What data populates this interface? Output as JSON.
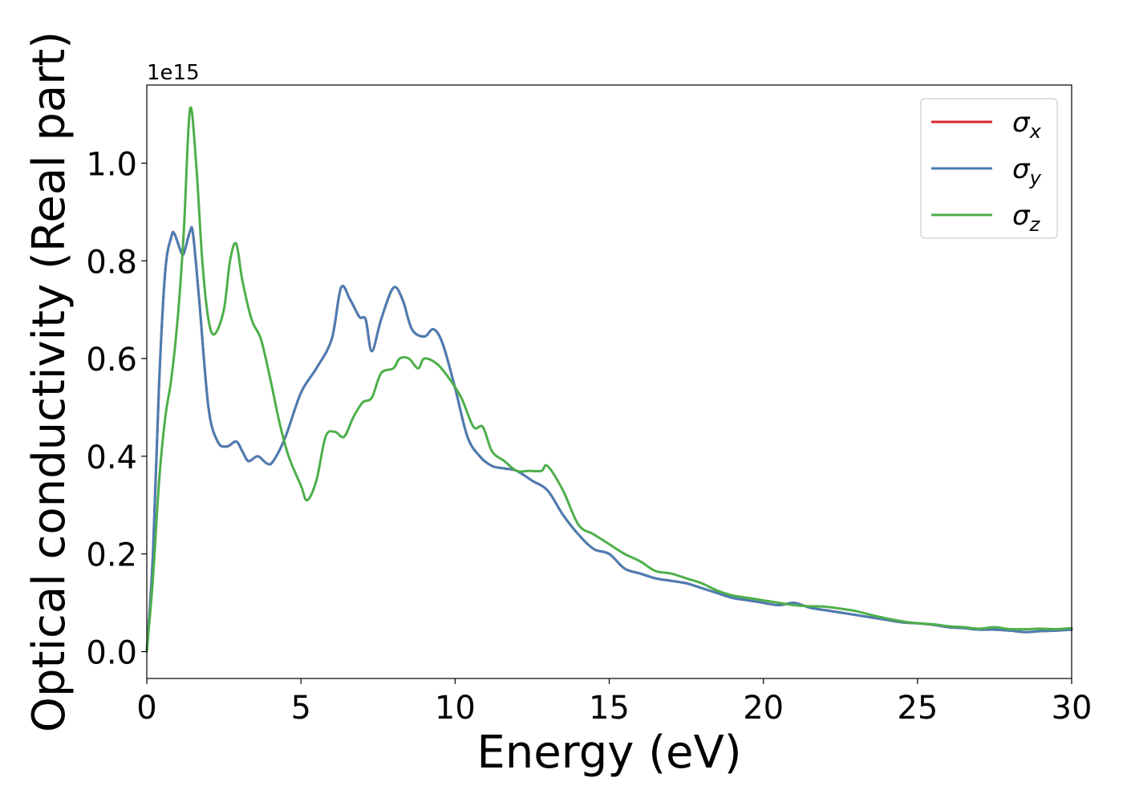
{
  "chart_data": {
    "type": "line",
    "xlabel": "Energy (eV)",
    "ylabel": "Optical conductivity (Real part)",
    "y_offset_label": "1e15",
    "xlim": [
      0,
      30
    ],
    "ylim": [
      -0.055,
      1.16
    ],
    "x_ticks": [
      0,
      5,
      10,
      15,
      20,
      25,
      30
    ],
    "x_tick_labels": [
      "0",
      "5",
      "10",
      "15",
      "20",
      "25",
      "30"
    ],
    "y_ticks": [
      0.0,
      0.2,
      0.4,
      0.6,
      0.8,
      1.0
    ],
    "y_tick_labels": [
      "0.0",
      "0.2",
      "0.4",
      "0.6",
      "0.8",
      "1.0"
    ],
    "grid": false,
    "legend_position": "top-right",
    "series": [
      {
        "name": "σx",
        "legend_base": "σ",
        "legend_sub": "x",
        "color": "#d62728",
        "x": [
          0,
          0.2,
          0.4,
          0.6,
          0.8,
          0.9,
          1.1,
          1.2,
          1.4,
          1.5,
          1.7,
          2.0,
          2.3,
          2.6,
          2.9,
          3.1,
          3.3,
          3.6,
          3.9,
          4.1,
          4.5,
          5.0,
          5.5,
          6.0,
          6.3,
          6.6,
          6.9,
          7.1,
          7.3,
          7.6,
          8.0,
          8.3,
          8.6,
          9.0,
          9.3,
          9.6,
          10.0,
          10.4,
          10.8,
          11.2,
          11.6,
          12.0,
          12.5,
          13.0,
          13.5,
          14.0,
          14.5,
          15.0,
          15.5,
          16.0,
          16.5,
          17.0,
          17.5,
          18.0,
          18.5,
          19.0,
          19.5,
          20.0,
          20.5,
          21.0,
          21.5,
          22.0,
          22.5,
          23.0,
          23.5,
          24.0,
          24.5,
          25.0,
          25.5,
          26.0,
          26.5,
          27.0,
          27.5,
          28.0,
          28.5,
          29.0,
          29.5,
          30.0
        ],
        "y": [
          0.0,
          0.2,
          0.55,
          0.78,
          0.85,
          0.855,
          0.82,
          0.815,
          0.86,
          0.855,
          0.72,
          0.5,
          0.43,
          0.42,
          0.43,
          0.41,
          0.39,
          0.4,
          0.385,
          0.39,
          0.44,
          0.53,
          0.58,
          0.64,
          0.745,
          0.72,
          0.685,
          0.68,
          0.615,
          0.68,
          0.745,
          0.72,
          0.66,
          0.645,
          0.66,
          0.63,
          0.54,
          0.44,
          0.4,
          0.38,
          0.375,
          0.37,
          0.35,
          0.33,
          0.28,
          0.24,
          0.21,
          0.2,
          0.17,
          0.16,
          0.15,
          0.145,
          0.14,
          0.13,
          0.12,
          0.11,
          0.105,
          0.1,
          0.095,
          0.1,
          0.09,
          0.085,
          0.08,
          0.075,
          0.07,
          0.065,
          0.06,
          0.058,
          0.055,
          0.05,
          0.048,
          0.045,
          0.045,
          0.043,
          0.04,
          0.042,
          0.043,
          0.045
        ]
      },
      {
        "name": "σy",
        "legend_base": "σ",
        "legend_sub": "y",
        "color": "#4a7db3",
        "x": [
          0,
          0.2,
          0.4,
          0.6,
          0.8,
          0.9,
          1.1,
          1.2,
          1.4,
          1.5,
          1.7,
          2.0,
          2.3,
          2.6,
          2.9,
          3.1,
          3.3,
          3.6,
          3.9,
          4.1,
          4.5,
          5.0,
          5.5,
          6.0,
          6.3,
          6.6,
          6.9,
          7.1,
          7.3,
          7.6,
          8.0,
          8.3,
          8.6,
          9.0,
          9.3,
          9.6,
          10.0,
          10.4,
          10.8,
          11.2,
          11.6,
          12.0,
          12.5,
          13.0,
          13.5,
          14.0,
          14.5,
          15.0,
          15.5,
          16.0,
          16.5,
          17.0,
          17.5,
          18.0,
          18.5,
          19.0,
          19.5,
          20.0,
          20.5,
          21.0,
          21.5,
          22.0,
          22.5,
          23.0,
          23.5,
          24.0,
          24.5,
          25.0,
          25.5,
          26.0,
          26.5,
          27.0,
          27.5,
          28.0,
          28.5,
          29.0,
          29.5,
          30.0
        ],
        "y": [
          0.0,
          0.2,
          0.55,
          0.78,
          0.85,
          0.855,
          0.82,
          0.815,
          0.86,
          0.855,
          0.72,
          0.5,
          0.43,
          0.42,
          0.43,
          0.41,
          0.39,
          0.4,
          0.385,
          0.39,
          0.44,
          0.53,
          0.58,
          0.64,
          0.745,
          0.72,
          0.685,
          0.68,
          0.615,
          0.68,
          0.745,
          0.72,
          0.66,
          0.645,
          0.66,
          0.63,
          0.54,
          0.44,
          0.4,
          0.38,
          0.375,
          0.37,
          0.35,
          0.33,
          0.28,
          0.24,
          0.21,
          0.2,
          0.17,
          0.16,
          0.15,
          0.145,
          0.14,
          0.13,
          0.12,
          0.11,
          0.105,
          0.1,
          0.095,
          0.1,
          0.09,
          0.085,
          0.08,
          0.075,
          0.07,
          0.065,
          0.06,
          0.058,
          0.055,
          0.05,
          0.048,
          0.045,
          0.045,
          0.043,
          0.04,
          0.042,
          0.043,
          0.045
        ]
      },
      {
        "name": "σz",
        "legend_base": "σ",
        "legend_sub": "z",
        "color": "#4daf4a",
        "x": [
          0,
          0.2,
          0.4,
          0.6,
          0.8,
          1.0,
          1.2,
          1.4,
          1.6,
          1.8,
          2.0,
          2.2,
          2.5,
          2.7,
          2.9,
          3.1,
          3.4,
          3.7,
          4.0,
          4.3,
          4.6,
          5.0,
          5.2,
          5.5,
          5.8,
          6.1,
          6.4,
          6.7,
          7.0,
          7.3,
          7.6,
          8.0,
          8.2,
          8.5,
          8.8,
          9.0,
          9.4,
          9.8,
          10.2,
          10.6,
          10.9,
          11.2,
          11.6,
          12.0,
          12.4,
          12.8,
          13.0,
          13.5,
          14.0,
          14.5,
          15.0,
          15.5,
          16.0,
          16.5,
          17.0,
          17.5,
          18.0,
          18.5,
          19.0,
          19.5,
          20.0,
          20.5,
          21.0,
          21.5,
          22.0,
          22.5,
          23.0,
          23.5,
          24.0,
          24.5,
          25.0,
          25.5,
          26.0,
          26.5,
          27.0,
          27.5,
          28.0,
          28.5,
          29.0,
          29.5,
          30.0
        ],
        "y": [
          0.0,
          0.15,
          0.35,
          0.48,
          0.56,
          0.68,
          0.86,
          1.11,
          1.0,
          0.8,
          0.68,
          0.65,
          0.7,
          0.8,
          0.835,
          0.76,
          0.68,
          0.64,
          0.56,
          0.47,
          0.4,
          0.34,
          0.31,
          0.35,
          0.44,
          0.45,
          0.44,
          0.48,
          0.51,
          0.52,
          0.57,
          0.58,
          0.6,
          0.6,
          0.58,
          0.6,
          0.59,
          0.56,
          0.52,
          0.46,
          0.46,
          0.41,
          0.39,
          0.37,
          0.37,
          0.37,
          0.38,
          0.33,
          0.26,
          0.24,
          0.22,
          0.2,
          0.185,
          0.165,
          0.16,
          0.15,
          0.14,
          0.125,
          0.115,
          0.11,
          0.105,
          0.1,
          0.095,
          0.093,
          0.092,
          0.088,
          0.083,
          0.075,
          0.068,
          0.062,
          0.058,
          0.056,
          0.052,
          0.05,
          0.047,
          0.05,
          0.046,
          0.046,
          0.047,
          0.046,
          0.048
        ]
      }
    ]
  }
}
